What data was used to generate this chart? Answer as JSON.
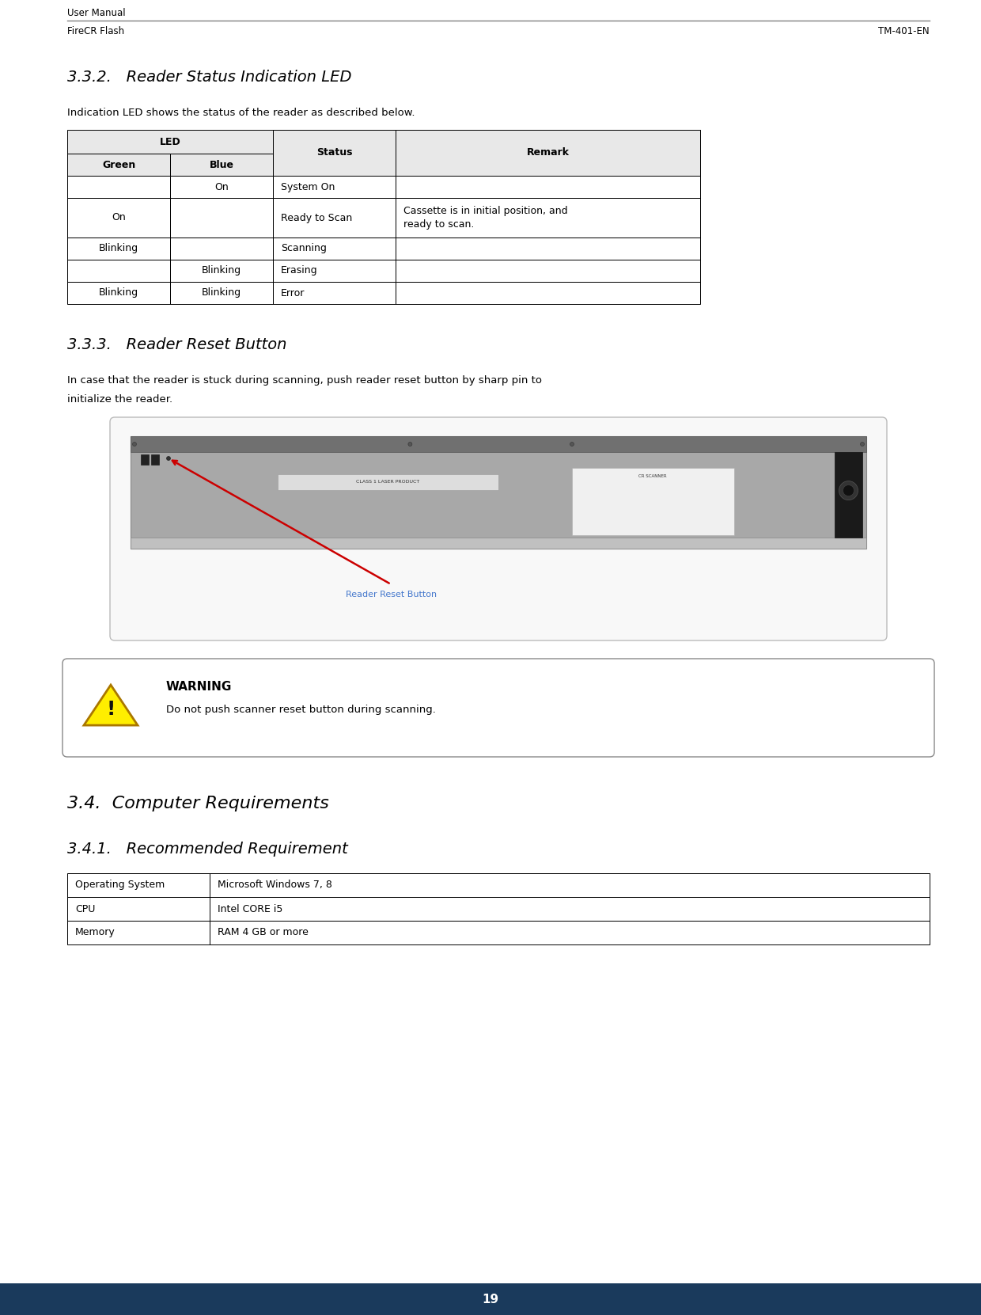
{
  "page_width": 12.4,
  "page_height": 16.61,
  "bg_color": "#ffffff",
  "header_line_color": "#808080",
  "footer_bg_color": "#1a3a5c",
  "footer_text": "19",
  "footer_text_color": "#ffffff",
  "header_left": "User Manual",
  "header_right_line": "FireCR Flash",
  "header_right_code": "TM-401-EN",
  "section_332_title": "3.3.2.   Reader Status Indication LED",
  "section_332_body": "Indication LED shows the status of the reader as described below.",
  "led_rows": [
    {
      "green": "",
      "blue": "On",
      "status": "System On",
      "remark": ""
    },
    {
      "green": "On",
      "blue": "",
      "status": "Ready to Scan",
      "remark": "Cassette is in initial position, and\nready to scan."
    },
    {
      "green": "Blinking",
      "blue": "",
      "status": "Scanning",
      "remark": ""
    },
    {
      "green": "",
      "blue": "Blinking",
      "status": "Erasing",
      "remark": ""
    },
    {
      "green": "Blinking",
      "blue": "Blinking",
      "status": "Error",
      "remark": ""
    }
  ],
  "section_333_title": "3.3.3.   Reader Reset Button",
  "section_333_body_line1": "In case that the reader is stuck during scanning, push reader reset button by sharp pin to",
  "section_333_body_line2": "initialize the reader.",
  "warning_title": "WARNING",
  "warning_body": "Do not push scanner reset button during scanning.",
  "reset_button_label": "Reader Reset Button",
  "section_34_title": "3.4.  Computer Requirements",
  "section_341_title": "3.4.1.   Recommended Requirement",
  "req_rows": [
    {
      "label": "Operating System",
      "value": "Microsoft Windows 7, 8"
    },
    {
      "label": "CPU",
      "value": "Intel CORE i5"
    },
    {
      "label": "Memory",
      "value": "RAM 4 GB or more"
    }
  ],
  "table_border_color": "#000000",
  "arrow_color": "#cc0000",
  "reset_label_color": "#4477cc"
}
